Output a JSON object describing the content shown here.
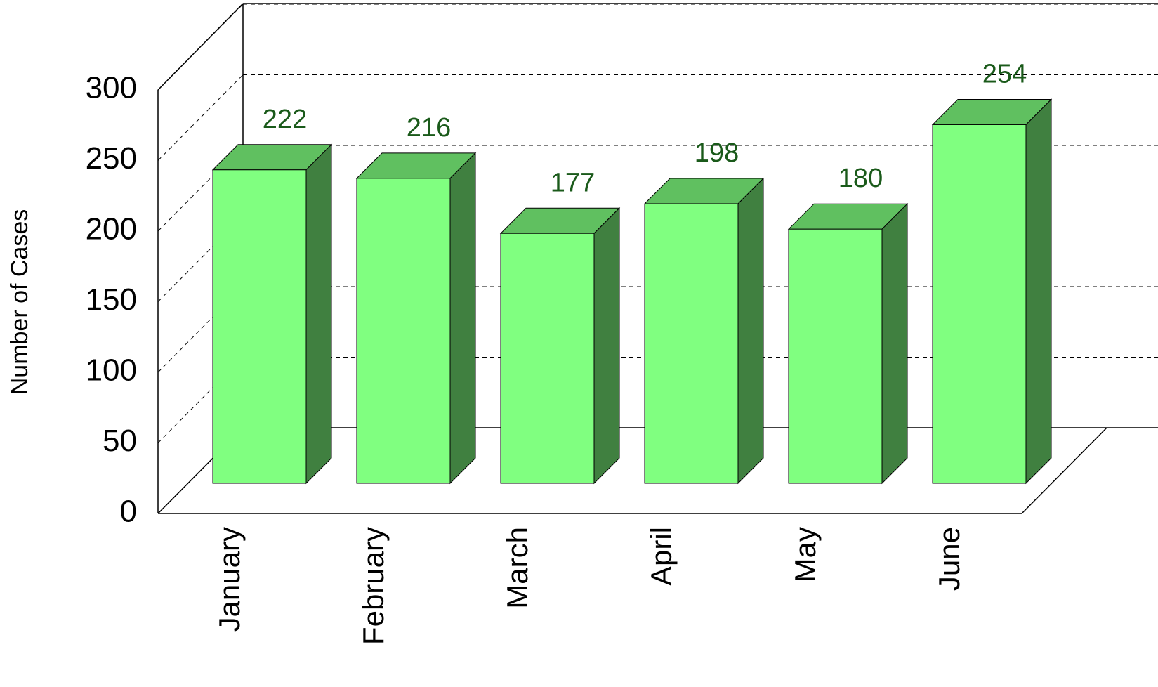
{
  "chart_data": {
    "type": "bar3d",
    "y_label": "Number of Cases",
    "categories": [
      "January",
      "February",
      "March",
      "April",
      "May",
      "June"
    ],
    "values": [
      222,
      216,
      177,
      198,
      180,
      254
    ],
    "colors": {
      "front": "#80ff80",
      "top": "#60c060",
      "side": "#408040",
      "label": "#1a5a1a"
    },
    "ylim": [
      0,
      300
    ],
    "yticks": [
      0,
      50,
      100,
      150,
      200,
      250,
      300
    ],
    "grid": true
  }
}
